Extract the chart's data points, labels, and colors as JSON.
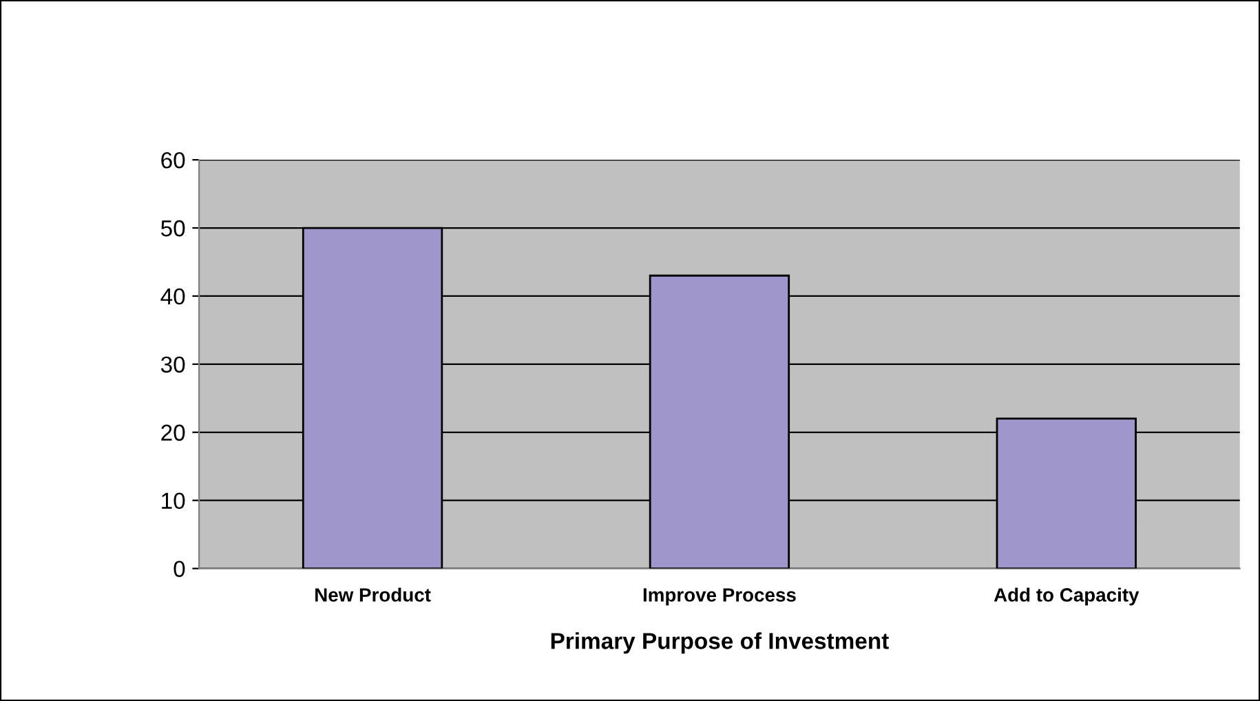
{
  "chart_data": {
    "type": "bar",
    "xlabel": "Primary Purpose of Investment",
    "categories": [
      "New Product",
      "Improve Process",
      "Add to Capacity"
    ],
    "values": [
      50,
      43,
      22
    ],
    "color": "#9f97cc",
    "ylim": [
      0,
      60
    ],
    "yticks": [
      0,
      10,
      20,
      30,
      40,
      50,
      60
    ],
    "grid": "y"
  }
}
